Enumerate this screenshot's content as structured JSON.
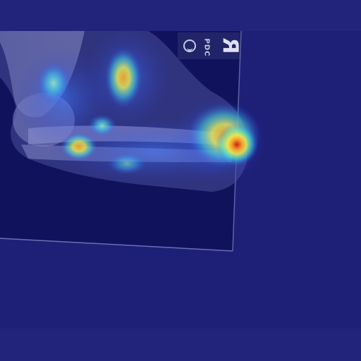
{
  "image": {
    "subject": "elbow-forearm-xray-heatmap",
    "marker": {
      "letter": "R",
      "subtext": "PDC"
    },
    "colors": {
      "background": "#1e1f76",
      "plate": "#11125c",
      "heat_high": "#e0301a",
      "heat_mid": "#f3e43a",
      "heat_low": "#36e6e0"
    }
  }
}
